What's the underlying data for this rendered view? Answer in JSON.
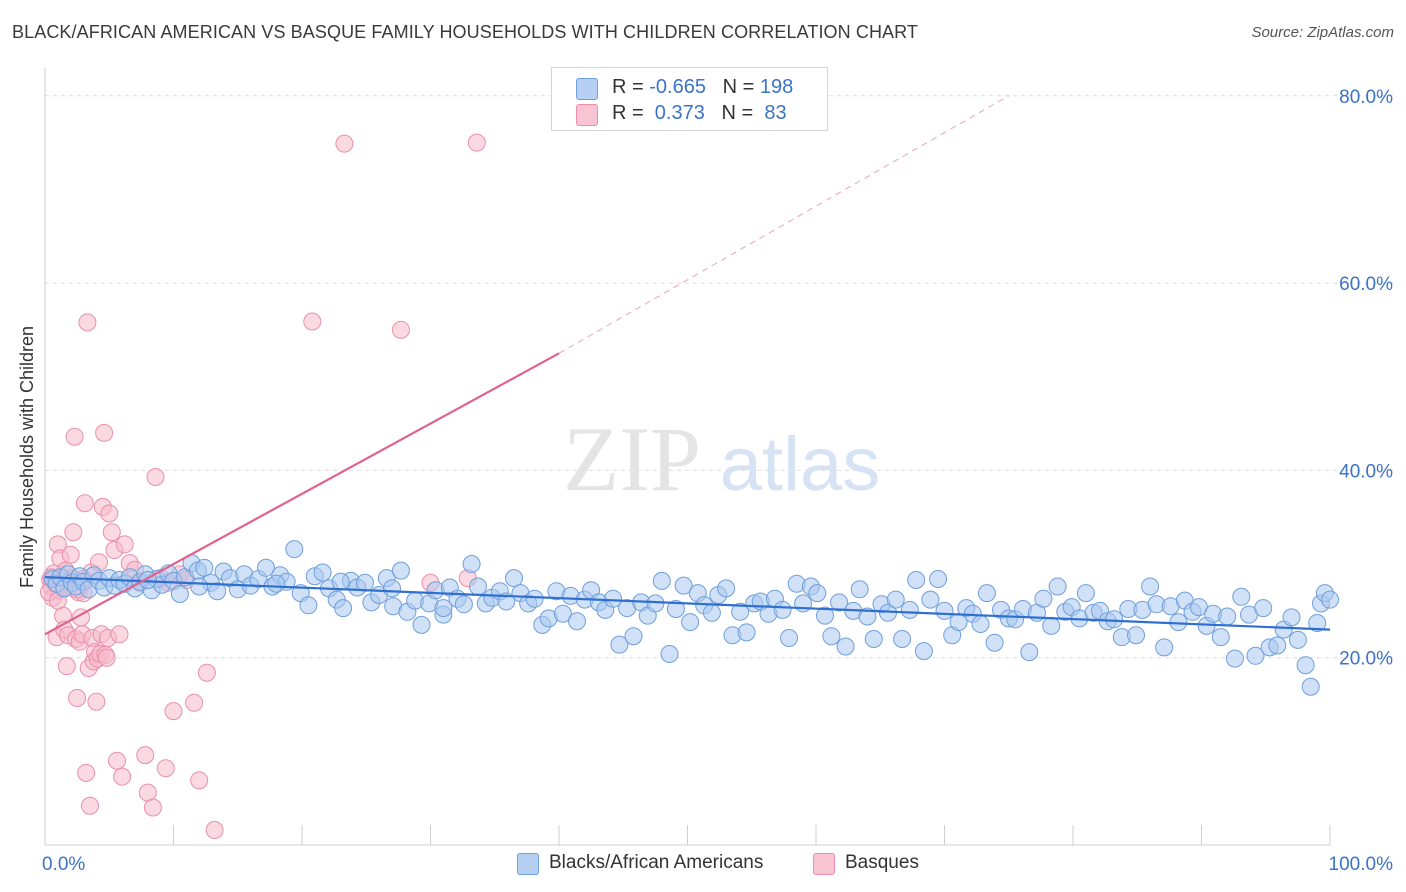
{
  "title": "BLACK/AFRICAN AMERICAN VS BASQUE FAMILY HOUSEHOLDS WITH CHILDREN CORRELATION CHART",
  "source": "Source: ZipAtlas.com",
  "watermark": {
    "zip": "ZIP",
    "atlas": "atlas"
  },
  "colors": {
    "blue_fill": "#a9c8f0",
    "blue_stroke": "#6f9fdc",
    "blue_line": "#2f6fd0",
    "pink_fill": "#f6b9cb",
    "pink_stroke": "#ea8fab",
    "pink_line": "#e0628d",
    "axis_text": "#3b73c8",
    "grid": "#dcdcdc"
  },
  "legend_top": {
    "rows": [
      {
        "r_label": "R = ",
        "r_value": "-0.665",
        "n_label": "N = ",
        "n_value": "198"
      },
      {
        "r_label": "R = ",
        "r_value": " 0.373",
        "n_label": "N = ",
        "n_value": " 83"
      }
    ]
  },
  "legend_bottom": {
    "series1": "Blacks/African Americans",
    "series2": "Basques"
  },
  "chart_data": {
    "type": "scatter",
    "title": "BLACK/AFRICAN AMERICAN VS BASQUE FAMILY HOUSEHOLDS WITH CHILDREN CORRELATION CHART",
    "xlabel": "",
    "ylabel": "Family Households with Children",
    "xlim": [
      0,
      100
    ],
    "ylim": [
      0,
      80
    ],
    "x_tick_labels": [
      "0.0%",
      "100.0%"
    ],
    "y_ticks": [
      20,
      40,
      60,
      80
    ],
    "y_tick_labels": [
      "20.0%",
      "40.0%",
      "60.0%",
      "80.0%"
    ],
    "grid": true,
    "legend_position": "top-center",
    "series": [
      {
        "name": "Blacks/African Americans",
        "R": -0.665,
        "N": 198,
        "trend": {
          "x0": 0,
          "y0": 28.6,
          "x1": 100,
          "y1": 23.0,
          "dash_from": 100
        },
        "points": [
          [
            0.6,
            28.4
          ],
          [
            0.9,
            27.9
          ],
          [
            1.2,
            28.6
          ],
          [
            1.5,
            27.4
          ],
          [
            1.8,
            28.9
          ],
          [
            2.1,
            28.0
          ],
          [
            2.4,
            27.6
          ],
          [
            2.7,
            28.7
          ],
          [
            3.0,
            28.1
          ],
          [
            3.4,
            27.3
          ],
          [
            3.8,
            28.8
          ],
          [
            4.2,
            28.2
          ],
          [
            4.6,
            27.5
          ],
          [
            5.0,
            28.5
          ],
          [
            5.4,
            27.7
          ],
          [
            5.8,
            28.3
          ],
          [
            6.2,
            27.9
          ],
          [
            6.6,
            28.6
          ],
          [
            7.0,
            27.4
          ],
          [
            7.4,
            28.1
          ],
          [
            7.8,
            28.9
          ],
          [
            8.3,
            27.2
          ],
          [
            8.7,
            28.4
          ],
          [
            9.1,
            27.8
          ],
          [
            9.6,
            29.0
          ],
          [
            10.0,
            28.2
          ],
          [
            10.5,
            26.8
          ],
          [
            10.9,
            28.6
          ],
          [
            11.4,
            30.1
          ],
          [
            11.9,
            29.3
          ],
          [
            12.4,
            29.6
          ],
          [
            12.9,
            28.0
          ],
          [
            13.4,
            27.1
          ],
          [
            13.9,
            29.2
          ],
          [
            14.4,
            28.5
          ],
          [
            15.0,
            27.3
          ],
          [
            15.5,
            28.9
          ],
          [
            16.0,
            27.7
          ],
          [
            16.6,
            28.4
          ],
          [
            17.2,
            29.6
          ],
          [
            17.7,
            27.6
          ],
          [
            18.3,
            28.8
          ],
          [
            18.8,
            28.1
          ],
          [
            19.4,
            31.6
          ],
          [
            19.9,
            26.9
          ],
          [
            20.5,
            25.6
          ],
          [
            21.0,
            28.7
          ],
          [
            21.6,
            29.1
          ],
          [
            22.1,
            27.4
          ],
          [
            22.7,
            26.2
          ],
          [
            23.2,
            25.3
          ],
          [
            23.8,
            28.2
          ],
          [
            24.3,
            27.5
          ],
          [
            24.9,
            28.0
          ],
          [
            25.4,
            25.9
          ],
          [
            26.0,
            26.7
          ],
          [
            26.6,
            28.5
          ],
          [
            27.1,
            25.5
          ],
          [
            27.7,
            29.3
          ],
          [
            28.2,
            24.9
          ],
          [
            28.8,
            26.1
          ],
          [
            29.3,
            23.5
          ],
          [
            29.9,
            25.8
          ],
          [
            30.4,
            27.2
          ],
          [
            31.0,
            24.6
          ],
          [
            31.5,
            27.5
          ],
          [
            32.1,
            26.3
          ],
          [
            32.6,
            25.7
          ],
          [
            33.2,
            30.0
          ],
          [
            33.7,
            27.6
          ],
          [
            34.3,
            25.8
          ],
          [
            34.8,
            26.4
          ],
          [
            35.4,
            27.1
          ],
          [
            35.9,
            26.0
          ],
          [
            36.5,
            28.5
          ],
          [
            37.0,
            26.9
          ],
          [
            37.6,
            25.8
          ],
          [
            38.1,
            26.3
          ],
          [
            38.7,
            23.5
          ],
          [
            39.2,
            24.2
          ],
          [
            39.8,
            27.1
          ],
          [
            40.3,
            24.7
          ],
          [
            40.9,
            26.6
          ],
          [
            41.4,
            23.9
          ],
          [
            42.0,
            26.2
          ],
          [
            42.5,
            27.2
          ],
          [
            43.1,
            25.9
          ],
          [
            43.6,
            25.1
          ],
          [
            44.2,
            26.3
          ],
          [
            44.7,
            21.4
          ],
          [
            45.3,
            25.3
          ],
          [
            45.8,
            22.3
          ],
          [
            46.4,
            25.9
          ],
          [
            46.9,
            24.5
          ],
          [
            47.5,
            25.8
          ],
          [
            48.0,
            28.2
          ],
          [
            48.6,
            20.4
          ],
          [
            49.1,
            25.2
          ],
          [
            49.7,
            27.7
          ],
          [
            50.2,
            23.8
          ],
          [
            50.8,
            26.9
          ],
          [
            51.3,
            25.6
          ],
          [
            51.9,
            24.8
          ],
          [
            52.4,
            26.7
          ],
          [
            53.0,
            27.4
          ],
          [
            53.5,
            22.4
          ],
          [
            54.1,
            24.9
          ],
          [
            54.6,
            22.7
          ],
          [
            55.2,
            25.8
          ],
          [
            55.7,
            26.0
          ],
          [
            56.3,
            24.7
          ],
          [
            56.8,
            26.3
          ],
          [
            57.4,
            25.1
          ],
          [
            57.9,
            22.1
          ],
          [
            58.5,
            27.9
          ],
          [
            59.0,
            25.8
          ],
          [
            59.6,
            27.6
          ],
          [
            60.1,
            26.9
          ],
          [
            60.7,
            24.5
          ],
          [
            61.2,
            22.3
          ],
          [
            61.8,
            25.9
          ],
          [
            62.3,
            21.2
          ],
          [
            62.9,
            25.0
          ],
          [
            63.4,
            27.3
          ],
          [
            64.0,
            24.4
          ],
          [
            64.5,
            22.0
          ],
          [
            65.1,
            25.7
          ],
          [
            65.6,
            24.8
          ],
          [
            66.2,
            26.2
          ],
          [
            66.7,
            22.0
          ],
          [
            67.3,
            25.1
          ],
          [
            67.8,
            28.3
          ],
          [
            68.4,
            20.7
          ],
          [
            68.9,
            26.2
          ],
          [
            69.5,
            28.4
          ],
          [
            70.0,
            25.0
          ],
          [
            70.6,
            22.4
          ],
          [
            71.1,
            23.8
          ],
          [
            71.7,
            25.3
          ],
          [
            72.2,
            24.7
          ],
          [
            72.8,
            23.6
          ],
          [
            73.3,
            26.9
          ],
          [
            73.9,
            21.6
          ],
          [
            74.4,
            25.1
          ],
          [
            75.0,
            24.2
          ],
          [
            75.5,
            24.1
          ],
          [
            76.1,
            25.2
          ],
          [
            76.6,
            20.6
          ],
          [
            77.2,
            24.8
          ],
          [
            77.7,
            26.3
          ],
          [
            78.3,
            23.4
          ],
          [
            78.8,
            27.6
          ],
          [
            79.4,
            24.9
          ],
          [
            79.9,
            25.4
          ],
          [
            80.5,
            24.2
          ],
          [
            81.0,
            26.9
          ],
          [
            81.6,
            24.8
          ],
          [
            82.1,
            25.0
          ],
          [
            82.7,
            23.9
          ],
          [
            83.2,
            24.1
          ],
          [
            83.8,
            22.2
          ],
          [
            84.3,
            25.2
          ],
          [
            84.9,
            22.4
          ],
          [
            85.4,
            25.1
          ],
          [
            86.0,
            27.6
          ],
          [
            86.5,
            25.7
          ],
          [
            87.1,
            21.1
          ],
          [
            87.6,
            25.5
          ],
          [
            88.2,
            23.8
          ],
          [
            88.7,
            26.1
          ],
          [
            89.3,
            24.9
          ],
          [
            89.8,
            25.4
          ],
          [
            90.4,
            23.4
          ],
          [
            90.9,
            24.7
          ],
          [
            91.5,
            22.2
          ],
          [
            92.0,
            24.4
          ],
          [
            92.6,
            19.9
          ],
          [
            93.1,
            26.5
          ],
          [
            93.7,
            24.6
          ],
          [
            94.2,
            20.2
          ],
          [
            94.8,
            25.3
          ],
          [
            95.3,
            21.1
          ],
          [
            95.9,
            21.3
          ],
          [
            96.4,
            23.0
          ],
          [
            97.0,
            24.3
          ],
          [
            97.5,
            21.9
          ],
          [
            98.1,
            19.2
          ],
          [
            98.5,
            16.9
          ],
          [
            99.0,
            23.7
          ],
          [
            99.3,
            25.8
          ],
          [
            99.6,
            26.9
          ],
          [
            100.0,
            26.2
          ],
          [
            8.0,
            28.3
          ],
          [
            12.0,
            27.6
          ],
          [
            18.0,
            27.9
          ],
          [
            23.0,
            28.1
          ],
          [
            27.0,
            27.4
          ],
          [
            31.0,
            25.3
          ]
        ]
      },
      {
        "name": "Basques",
        "R": 0.373,
        "N": 83,
        "trend": {
          "x0": 0,
          "y0": 22.5,
          "x1": 40,
          "y1": 52.5,
          "dash_to_x": 75,
          "dash_to_y": 80
        },
        "points": [
          [
            0.4,
            28.3
          ],
          [
            0.5,
            27.6
          ],
          [
            0.6,
            26.4
          ],
          [
            0.7,
            29.0
          ],
          [
            0.8,
            28.0
          ],
          [
            0.9,
            22.2
          ],
          [
            1.0,
            32.1
          ],
          [
            1.1,
            27.2
          ],
          [
            1.2,
            30.6
          ],
          [
            1.3,
            28.6
          ],
          [
            1.4,
            24.5
          ],
          [
            1.5,
            23.0
          ],
          [
            1.6,
            29.3
          ],
          [
            1.7,
            19.1
          ],
          [
            1.8,
            22.4
          ],
          [
            1.9,
            27.8
          ],
          [
            2.0,
            31.0
          ],
          [
            2.1,
            28.5
          ],
          [
            2.2,
            33.4
          ],
          [
            2.3,
            43.6
          ],
          [
            2.4,
            22.0
          ],
          [
            2.5,
            15.7
          ],
          [
            2.6,
            27.0
          ],
          [
            2.7,
            21.7
          ],
          [
            2.8,
            24.3
          ],
          [
            2.9,
            22.5
          ],
          [
            3.0,
            26.9
          ],
          [
            3.1,
            36.5
          ],
          [
            3.2,
            7.7
          ],
          [
            3.3,
            55.8
          ],
          [
            3.4,
            18.9
          ],
          [
            3.5,
            4.2
          ],
          [
            3.6,
            29.1
          ],
          [
            3.7,
            22.1
          ],
          [
            3.8,
            19.6
          ],
          [
            3.9,
            20.6
          ],
          [
            4.0,
            15.3
          ],
          [
            4.1,
            19.9
          ],
          [
            4.2,
            30.2
          ],
          [
            4.3,
            20.4
          ],
          [
            4.4,
            22.5
          ],
          [
            4.5,
            36.1
          ],
          [
            4.6,
            44.0
          ],
          [
            4.7,
            20.3
          ],
          [
            4.8,
            20.0
          ],
          [
            4.9,
            22.1
          ],
          [
            5.0,
            35.4
          ],
          [
            5.2,
            33.4
          ],
          [
            5.4,
            31.5
          ],
          [
            5.6,
            9.0
          ],
          [
            5.8,
            22.5
          ],
          [
            6.0,
            7.3
          ],
          [
            6.2,
            32.1
          ],
          [
            6.6,
            30.1
          ],
          [
            7.0,
            29.4
          ],
          [
            7.4,
            28.0
          ],
          [
            7.8,
            9.6
          ],
          [
            8.0,
            5.6
          ],
          [
            8.4,
            4.0
          ],
          [
            8.6,
            39.3
          ],
          [
            9.0,
            28.5
          ],
          [
            9.4,
            8.2
          ],
          [
            9.6,
            28.0
          ],
          [
            10.0,
            14.3
          ],
          [
            10.5,
            28.9
          ],
          [
            11.0,
            28.3
          ],
          [
            11.6,
            15.2
          ],
          [
            12.0,
            6.9
          ],
          [
            12.6,
            18.4
          ],
          [
            13.2,
            1.6
          ],
          [
            20.8,
            55.9
          ],
          [
            23.3,
            74.9
          ],
          [
            27.7,
            55.0
          ],
          [
            30.0,
            28.0
          ],
          [
            32.9,
            28.5
          ],
          [
            33.6,
            75.0
          ],
          [
            0.3,
            27.0
          ],
          [
            0.5,
            28.6
          ],
          [
            1.0,
            26.1
          ],
          [
            1.5,
            27.5
          ],
          [
            2.0,
            28.2
          ],
          [
            2.5,
            27.3
          ],
          [
            3.0,
            28.4
          ]
        ]
      }
    ]
  }
}
